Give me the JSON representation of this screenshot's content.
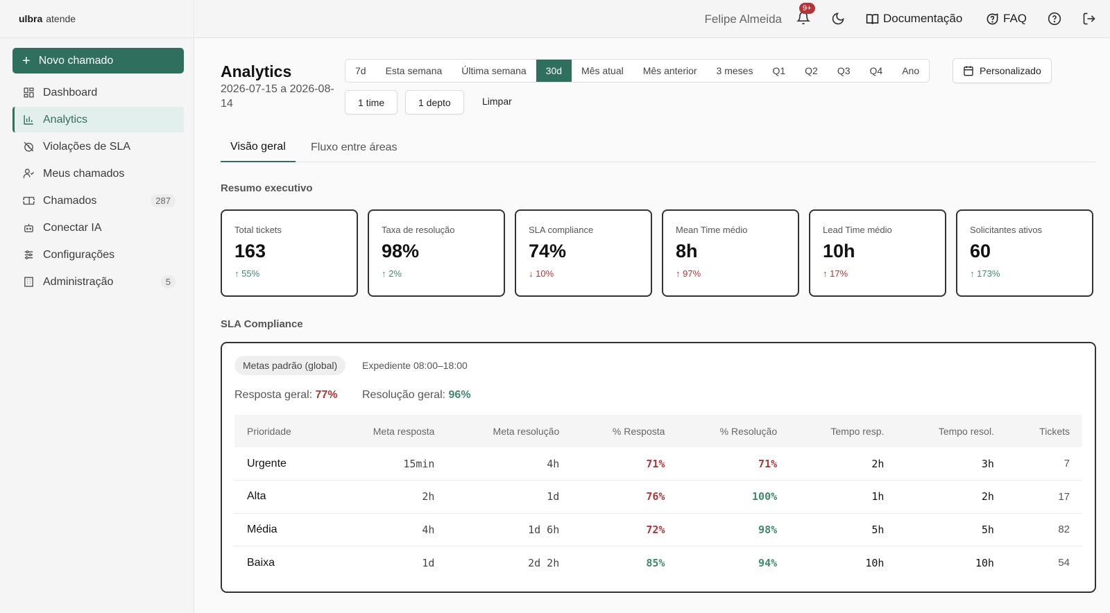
{
  "brand": {
    "name": "ulbra",
    "sub": "atende"
  },
  "sidebar": {
    "new_button": "Novo chamado",
    "items": [
      {
        "label": "Dashboard",
        "icon": "dashboard-icon",
        "active": false
      },
      {
        "label": "Analytics",
        "icon": "bar-chart-icon",
        "active": true
      },
      {
        "label": "Violações de SLA",
        "icon": "clock-off-icon",
        "active": false
      },
      {
        "label": "Meus chamados",
        "icon": "user-check-icon",
        "active": false
      },
      {
        "label": "Chamados",
        "icon": "ticket-icon",
        "active": false,
        "count": "287"
      },
      {
        "label": "Conectar IA",
        "icon": "bot-icon",
        "active": false
      },
      {
        "label": "Configurações",
        "icon": "sliders-icon",
        "active": false
      },
      {
        "label": "Administração",
        "icon": "building-icon",
        "active": false,
        "count": "5"
      }
    ]
  },
  "header": {
    "user_name": "Felipe Almeida",
    "notifications_badge": "9+",
    "docs_label": "Documentação",
    "faq_label": "FAQ"
  },
  "page": {
    "title": "Analytics",
    "date_range": "2026-07-15 a 2026-08-14",
    "periods": [
      "7d",
      "Esta semana",
      "Última semana",
      "30d",
      "Mês atual",
      "Mês anterior",
      "3 meses",
      "Q1",
      "Q2",
      "Q3",
      "Q4",
      "Ano"
    ],
    "selected_period": "30d",
    "custom_label": "Personalizado",
    "filters": {
      "team": "1 time",
      "dept": "1 depto",
      "clear": "Limpar"
    },
    "tabs": [
      "Visão geral",
      "Fluxo entre áreas"
    ],
    "active_tab": "Visão geral"
  },
  "summary": {
    "title": "Resumo executivo",
    "kpis": [
      {
        "label": "Total tickets",
        "value": "163",
        "delta": "55%",
        "direction": "up",
        "tone": "green"
      },
      {
        "label": "Taxa de resolução",
        "value": "98%",
        "delta": "2%",
        "direction": "up",
        "tone": "green"
      },
      {
        "label": "SLA compliance",
        "value": "74%",
        "delta": "10%",
        "direction": "down",
        "tone": "red"
      },
      {
        "label": "Mean Time médio",
        "value": "8h",
        "delta": "97%",
        "direction": "up",
        "tone": "red"
      },
      {
        "label": "Lead Time médio",
        "value": "10h",
        "delta": "17%",
        "direction": "up",
        "tone": "red"
      },
      {
        "label": "Solicitantes ativos",
        "value": "60",
        "delta": "173%",
        "direction": "up",
        "tone": "green"
      }
    ]
  },
  "sla": {
    "title": "SLA Compliance",
    "chip": "Metas padrão (global)",
    "expediente": "Expediente 08:00–18:00",
    "overall_response_label": "Resposta geral:",
    "overall_response_value": "77%",
    "overall_resolution_label": "Resolução geral:",
    "overall_resolution_value": "96%",
    "columns": [
      "Prioridade",
      "Meta resposta",
      "Meta resolução",
      "% Resposta",
      "% Resolução",
      "Tempo resp.",
      "Tempo resol.",
      "Tickets"
    ],
    "rows": [
      {
        "priority": "Urgente",
        "meta_resp": "15min",
        "meta_resol": "4h",
        "pct_resp": "71%",
        "pct_resp_tone": "red",
        "pct_resol": "71%",
        "pct_resol_tone": "red",
        "tempo_resp": "2h",
        "tempo_resol": "3h",
        "tickets": "7"
      },
      {
        "priority": "Alta",
        "meta_resp": "2h",
        "meta_resol": "1d",
        "pct_resp": "76%",
        "pct_resp_tone": "red",
        "pct_resol": "100%",
        "pct_resol_tone": "green",
        "tempo_resp": "1h",
        "tempo_resol": "2h",
        "tickets": "17"
      },
      {
        "priority": "Média",
        "meta_resp": "4h",
        "meta_resol": "1d 6h",
        "pct_resp": "72%",
        "pct_resp_tone": "red",
        "pct_resol": "98%",
        "pct_resol_tone": "green",
        "tempo_resp": "5h",
        "tempo_resol": "5h",
        "tickets": "82"
      },
      {
        "priority": "Baixa",
        "meta_resp": "1d",
        "meta_resol": "2d 2h",
        "pct_resp": "85%",
        "pct_resp_tone": "green",
        "pct_resol": "94%",
        "pct_resol_tone": "green",
        "tempo_resp": "10h",
        "tempo_resol": "10h",
        "tickets": "54"
      }
    ]
  },
  "colors": {
    "accent": "#2f6f5e",
    "positive": "#3d8a6a",
    "negative": "#b33434"
  }
}
